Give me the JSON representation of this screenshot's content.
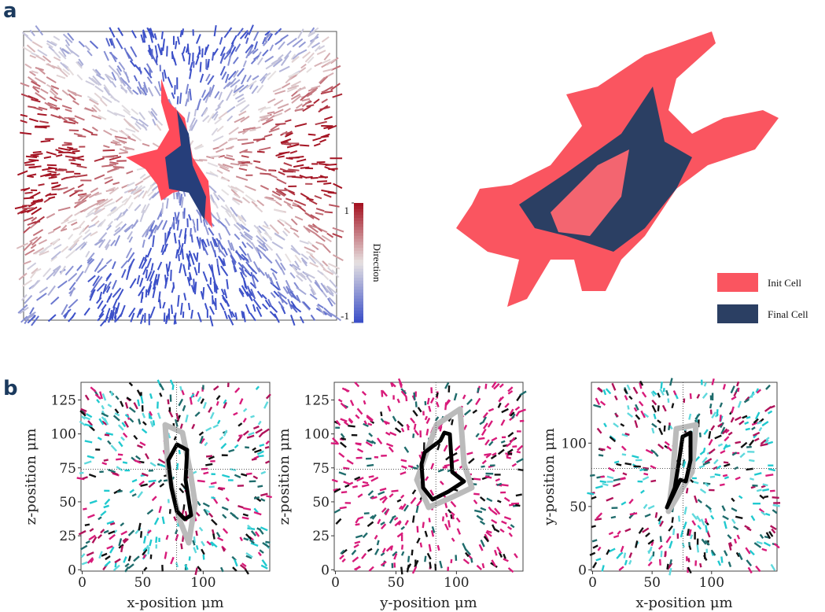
{
  "panel_labels": [
    "a",
    "b"
  ],
  "panel_a": {
    "colorbar": {
      "label": "Direction",
      "lim": [
        -1,
        1
      ],
      "ticks": [
        1,
        -1
      ]
    },
    "legend": [
      {
        "name": "Init Cell",
        "color": "#fa5560"
      },
      {
        "name": "Final Cell",
        "color": "#2b3f63"
      }
    ]
  },
  "chart_data": [
    {
      "type": "quiver",
      "xlabel": "x-position μm",
      "ylabel": "z-position μm",
      "xlim": [
        -1,
        155
      ],
      "ylim": [
        -1,
        138
      ],
      "xticks": [
        0,
        50,
        100
      ],
      "yticks": [
        0,
        25,
        50,
        75,
        100,
        125
      ],
      "crosshair": {
        "x": 78,
        "y": 74
      }
    },
    {
      "type": "quiver",
      "xlabel": "y-position μm",
      "ylabel": "z-position μm",
      "xlim": [
        -1,
        155
      ],
      "ylim": [
        -1,
        138
      ],
      "xticks": [
        0,
        50,
        100
      ],
      "yticks": [
        0,
        25,
        50,
        75,
        100,
        125
      ],
      "crosshair": {
        "x": 83,
        "y": 74
      }
    },
    {
      "type": "quiver",
      "xlabel": "x-position μm",
      "ylabel": "y-position μm",
      "xlim": [
        -1,
        155
      ],
      "ylim": [
        -1,
        148
      ],
      "xticks": [
        0,
        50,
        100
      ],
      "yticks": [
        0,
        50,
        100
      ],
      "crosshair": {
        "x": 76,
        "y": 80
      }
    }
  ]
}
